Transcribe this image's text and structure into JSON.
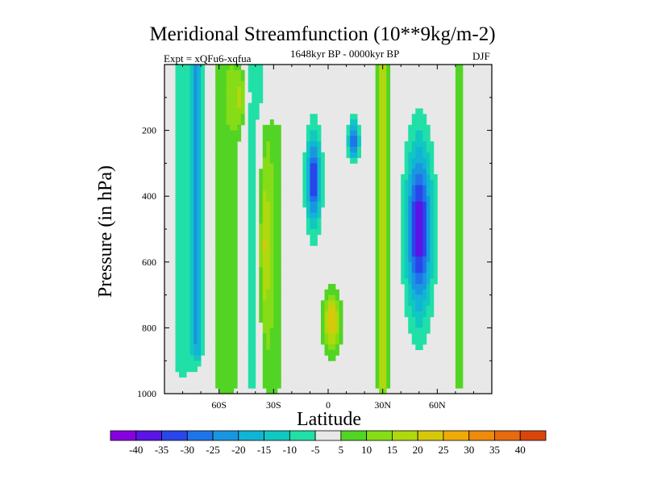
{
  "chart_data": {
    "type": "contour",
    "title": "Meridional Streamfunction (10**9kg/m-2)",
    "subtitle_left": "Expt = xQFu6-xqfua",
    "subtitle_center": "1648kyr BP - 0000kyr BP",
    "subtitle_right": "DJF",
    "xlabel": "Latitude",
    "ylabel": "Pressure (in hPa)",
    "xlim": [
      -90,
      90
    ],
    "ylim": [
      1000,
      0
    ],
    "xticks": [
      {
        "value": -60,
        "label": "60S"
      },
      {
        "value": -30,
        "label": "30S"
      },
      {
        "value": 0,
        "label": "0"
      },
      {
        "value": 30,
        "label": "30N"
      },
      {
        "value": 60,
        "label": "60N"
      }
    ],
    "yticks": [
      {
        "value": 200,
        "label": "200"
      },
      {
        "value": 400,
        "label": "400"
      },
      {
        "value": 600,
        "label": "600"
      },
      {
        "value": 800,
        "label": "800"
      },
      {
        "value": 1000,
        "label": "1000"
      }
    ],
    "colorbar": {
      "levels": [
        -40,
        -35,
        -30,
        -25,
        -20,
        -15,
        -10,
        -5,
        5,
        10,
        15,
        20,
        25,
        30,
        35,
        40
      ],
      "labels": [
        "-40",
        "-35",
        "-30",
        "-25",
        "-20",
        "-15",
        "-10",
        "-5",
        "5",
        "10",
        "15",
        "20",
        "25",
        "30",
        "35",
        "40"
      ],
      "colors": [
        "#8800e0",
        "#5a14e6",
        "#2846ea",
        "#1e74e8",
        "#1a96e0",
        "#12b4d6",
        "#10c8c0",
        "#20e0a8",
        "#e8e8e8",
        "#52d424",
        "#86dc16",
        "#b0d80e",
        "#d6c80a",
        "#f0aa08",
        "#ee8a0c",
        "#e66a0e",
        "#d9460c"
      ],
      "position": "bottom"
    },
    "features": [
      {
        "type": "band",
        "lon": -80,
        "p_top": 0,
        "p_bottom": 900,
        "value": -10,
        "width_deg": 12
      },
      {
        "type": "band",
        "lon": -72,
        "p_top": 0,
        "p_bottom": 850,
        "value": -20,
        "width_deg": 6
      },
      {
        "type": "band",
        "lon": -55,
        "p_top": 0,
        "p_bottom": 950,
        "value": 10,
        "width_deg": 18
      },
      {
        "type": "band",
        "lon": -42,
        "p_top": 0,
        "p_bottom": 950,
        "value": -10,
        "width_deg": 14
      },
      {
        "type": "blob",
        "lon": -48,
        "p": 100,
        "value": 15,
        "width_deg": 8,
        "height_p": 200
      },
      {
        "type": "band",
        "lon": -32,
        "p_top": 220,
        "p_bottom": 950,
        "value": 10,
        "width_deg": 16
      },
      {
        "type": "blob",
        "lon": -35,
        "p": 550,
        "value": 15,
        "width_deg": 6,
        "height_p": 500
      },
      {
        "type": "blob",
        "lon": -8,
        "p": 350,
        "value": -35,
        "width_deg": 8,
        "height_p": 280
      },
      {
        "type": "blob",
        "lon": 14,
        "p": 230,
        "value": -30,
        "width_deg": 6,
        "height_p": 120
      },
      {
        "type": "blob",
        "lon": 2,
        "p": 780,
        "value": 25,
        "width_deg": 10,
        "height_p": 180
      },
      {
        "type": "band",
        "lon": 30,
        "p_top": 0,
        "p_bottom": 950,
        "value": 20,
        "width_deg": 6
      },
      {
        "type": "blob",
        "lon": 50,
        "p": 500,
        "value": -40,
        "width_deg": 14,
        "height_p": 500
      },
      {
        "type": "band",
        "lon": 72,
        "p_top": 0,
        "p_bottom": 950,
        "value": 10,
        "width_deg": 4
      },
      {
        "type": "band",
        "lon": 82,
        "p_top": 0,
        "p_bottom": 900,
        "value": -5,
        "width_deg": 8
      }
    ]
  }
}
